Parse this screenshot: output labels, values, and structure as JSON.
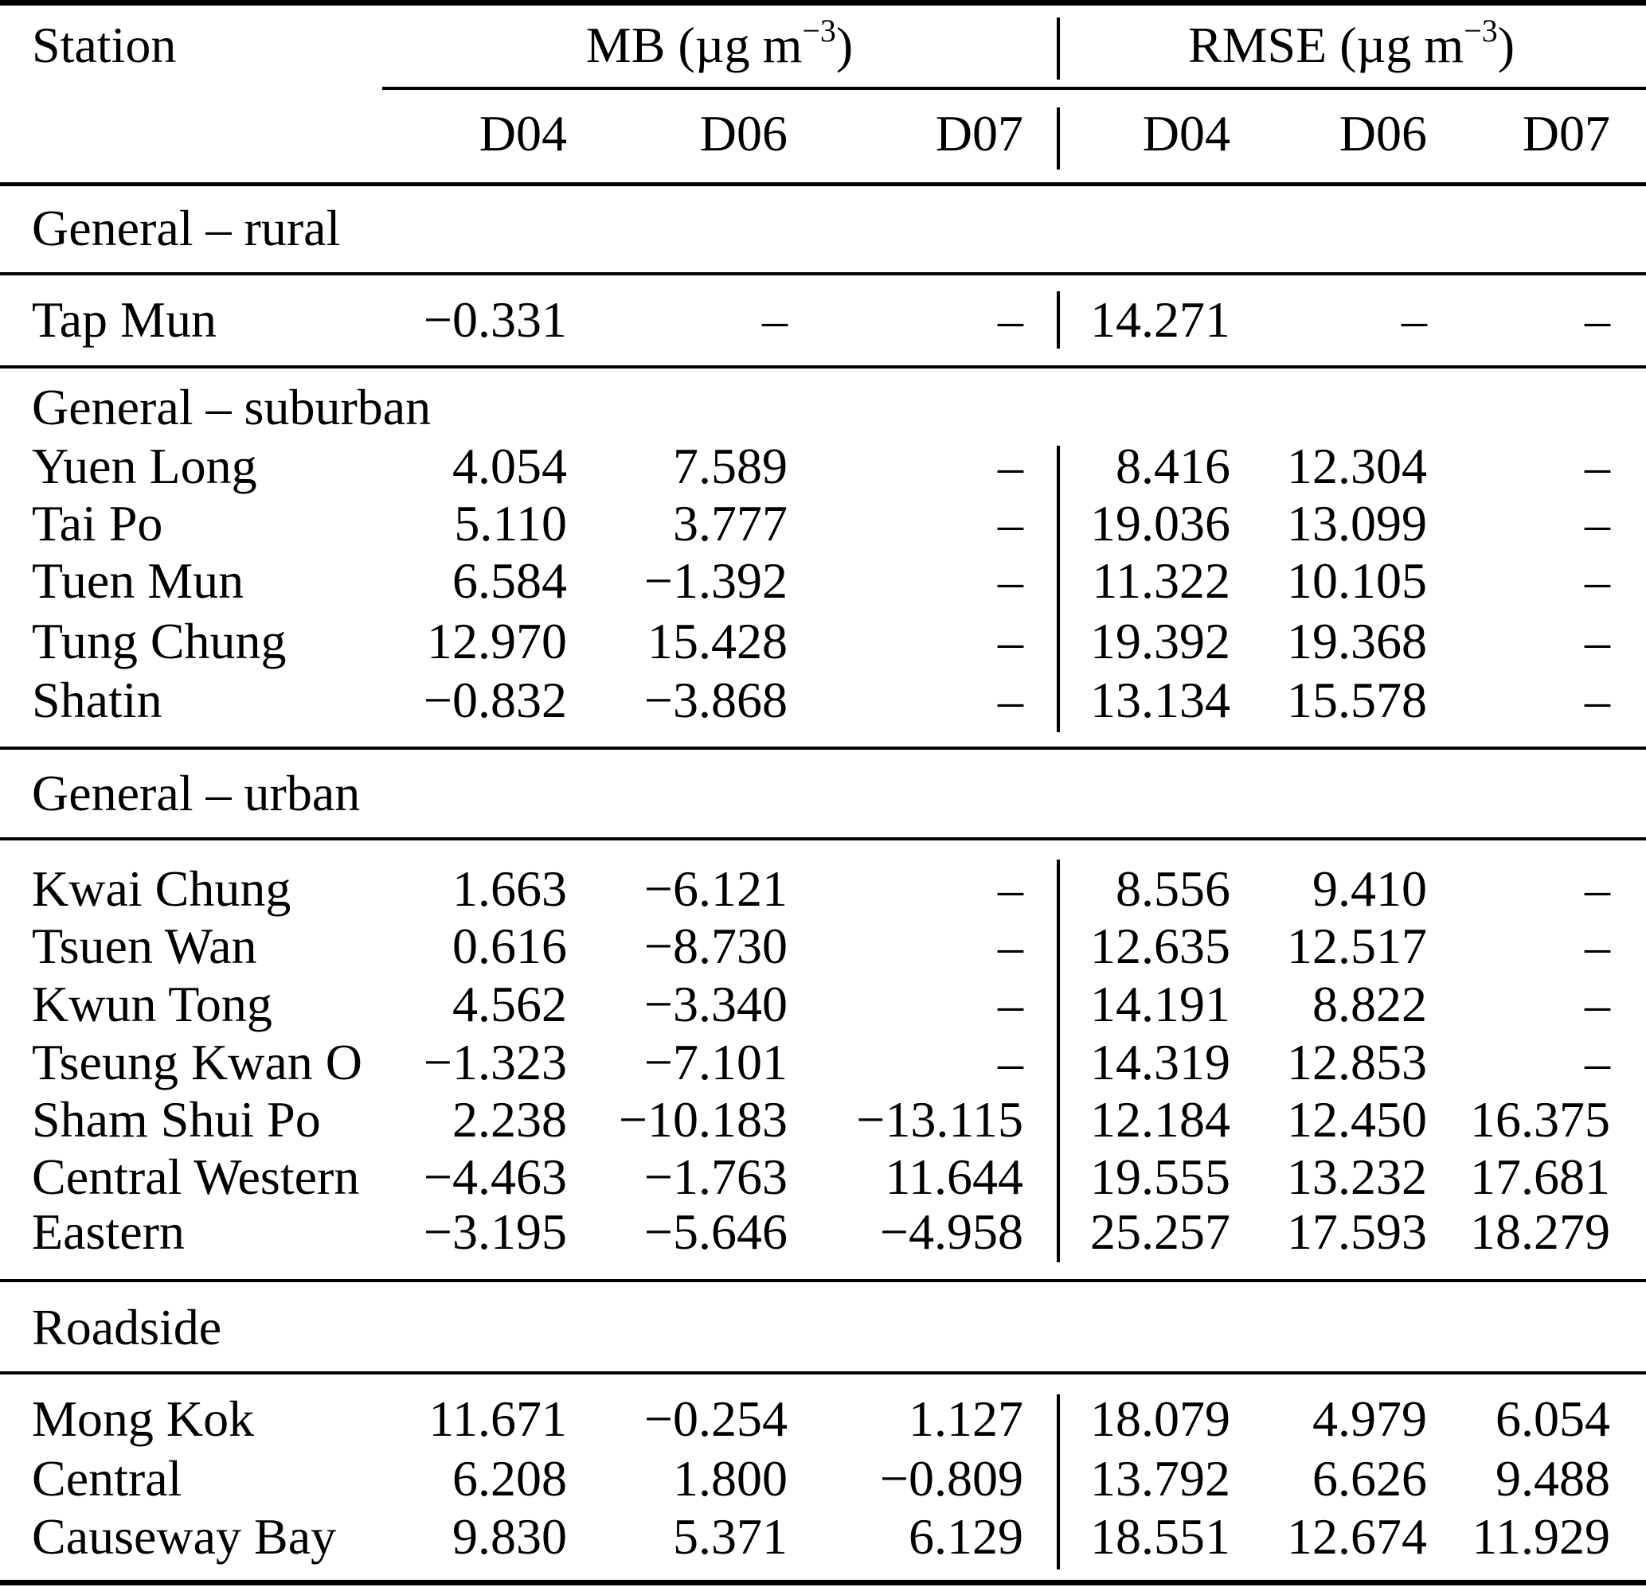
{
  "table": {
    "station_header": "Station",
    "col_groups": [
      {
        "name": "MB",
        "label_prefix": "MB (µg m",
        "sup": "−3",
        "label_suffix": ")"
      },
      {
        "name": "RMSE",
        "label_prefix": "RMSE (µg m",
        "sup": "−3",
        "label_suffix": ")"
      }
    ],
    "sub_headers": [
      "D04",
      "D06",
      "D07",
      "D04",
      "D06",
      "D07"
    ],
    "missing_marker": "–",
    "sections": [
      {
        "title": "General – rural",
        "rows": [
          {
            "station": "Tap Mun",
            "values": [
              "−0.331",
              "–",
              "–",
              "14.271",
              "–",
              "–"
            ]
          }
        ]
      },
      {
        "title": "General – suburban",
        "rows": [
          {
            "station": "Yuen Long",
            "values": [
              "4.054",
              "7.589",
              "–",
              "8.416",
              "12.304",
              "–"
            ]
          },
          {
            "station": "Tai Po",
            "values": [
              "5.110",
              "3.777",
              "–",
              "19.036",
              "13.099",
              "–"
            ]
          },
          {
            "station": "Tuen Mun",
            "values": [
              "6.584",
              "−1.392",
              "–",
              "11.322",
              "10.105",
              "–"
            ]
          },
          {
            "station": "Tung Chung",
            "values": [
              "12.970",
              "15.428",
              "–",
              "19.392",
              "19.368",
              "–"
            ]
          },
          {
            "station": "Shatin",
            "values": [
              "−0.832",
              "−3.868",
              "–",
              "13.134",
              "15.578",
              "–"
            ]
          }
        ]
      },
      {
        "title": "General – urban",
        "rows": [
          {
            "station": "Kwai Chung",
            "values": [
              "1.663",
              "−6.121",
              "–",
              "8.556",
              "9.410",
              "–"
            ]
          },
          {
            "station": "Tsuen Wan",
            "values": [
              "0.616",
              "−8.730",
              "–",
              "12.635",
              "12.517",
              "–"
            ]
          },
          {
            "station": "Kwun Tong",
            "values": [
              "4.562",
              "−3.340",
              "–",
              "14.191",
              "8.822",
              "–"
            ]
          },
          {
            "station": "Tseung Kwan O",
            "values": [
              "−1.323",
              "−7.101",
              "–",
              "14.319",
              "12.853",
              "–"
            ]
          },
          {
            "station": "Sham Shui Po",
            "values": [
              "2.238",
              "−10.183",
              "−13.115",
              "12.184",
              "12.450",
              "16.375"
            ]
          },
          {
            "station": "Central Western",
            "values": [
              "−4.463",
              "−1.763",
              "11.644",
              "19.555",
              "13.232",
              "17.681"
            ]
          },
          {
            "station": "Eastern",
            "values": [
              "−3.195",
              "−5.646",
              "−4.958",
              "25.257",
              "17.593",
              "18.279"
            ]
          }
        ]
      },
      {
        "title": "Roadside",
        "rows": [
          {
            "station": "Mong Kok",
            "values": [
              "11.671",
              "−0.254",
              "1.127",
              "18.079",
              "4.979",
              "6.054"
            ]
          },
          {
            "station": "Central",
            "values": [
              "6.208",
              "1.800",
              "−0.809",
              "13.792",
              "6.626",
              "9.488"
            ]
          },
          {
            "station": "Causeway Bay",
            "values": [
              "9.830",
              "5.371",
              "6.129",
              "18.551",
              "12.674",
              "11.929"
            ]
          }
        ]
      }
    ]
  }
}
